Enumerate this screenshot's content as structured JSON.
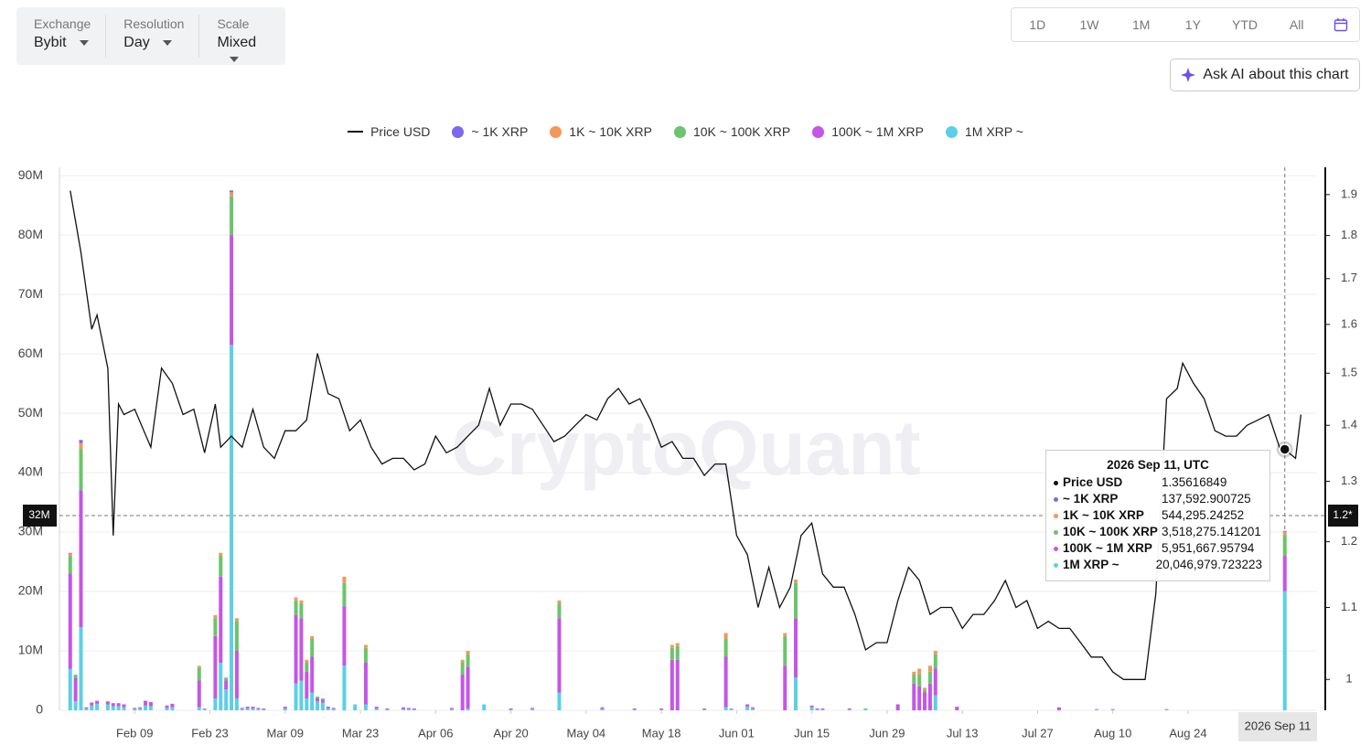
{
  "ui": {
    "controls": [
      {
        "label": "Exchange",
        "value": "Bybit"
      },
      {
        "label": "Resolution",
        "value": "Day"
      },
      {
        "label": "Scale",
        "value": "Mixed"
      }
    ],
    "ranges": [
      "1D",
      "1W",
      "1M",
      "1Y",
      "YTD",
      "All"
    ],
    "ask_ai": "Ask AI about this chart",
    "watermark": "CryptoQuant"
  },
  "chart_data": {
    "type": "bar",
    "stacked": true,
    "grid": true,
    "xlim": [
      "2026-01-26",
      "2026-09-17"
    ],
    "xticks": [
      {
        "value": "2026-02-09",
        "label": "Feb 09"
      },
      {
        "value": "2026-02-23",
        "label": "Feb 23"
      },
      {
        "value": "2026-03-09",
        "label": "Mar 09"
      },
      {
        "value": "2026-03-23",
        "label": "Mar 23"
      },
      {
        "value": "2026-04-06",
        "label": "Apr 06"
      },
      {
        "value": "2026-04-20",
        "label": "Apr 20"
      },
      {
        "value": "2026-05-04",
        "label": "May 04"
      },
      {
        "value": "2026-05-18",
        "label": "May 18"
      },
      {
        "value": "2026-06-01",
        "label": "Jun 01"
      },
      {
        "value": "2026-06-15",
        "label": "Jun 15"
      },
      {
        "value": "2026-06-29",
        "label": "Jun 29"
      },
      {
        "value": "2026-07-13",
        "label": "Jul 13"
      },
      {
        "value": "2026-07-27",
        "label": "Jul 27"
      },
      {
        "value": "2026-08-10",
        "label": "Aug 10"
      },
      {
        "value": "2026-08-24",
        "label": "Aug 24"
      }
    ],
    "ylim": [
      0,
      91400000
    ],
    "yticks": [
      0,
      {
        "value": 10000000,
        "label": "10M"
      },
      {
        "value": 20000000,
        "label": "20M"
      },
      {
        "value": 30000000,
        "label": "30M"
      },
      {
        "value": 40000000,
        "label": "40M"
      },
      {
        "value": 50000000,
        "label": "50M"
      },
      {
        "value": 60000000,
        "label": "60M"
      },
      {
        "value": 70000000,
        "label": "70M"
      },
      {
        "value": 80000000,
        "label": "80M"
      },
      {
        "value": 90000000,
        "label": "90M"
      }
    ],
    "y2scale": "log",
    "y2lim": [
      0.96,
      1.97
    ],
    "y2ticks": [
      1,
      1.1,
      1.2,
      1.3,
      1.4,
      1.5,
      1.6,
      1.7,
      1.8,
      1.9
    ],
    "x": [
      "2026-01-28",
      "2026-01-29",
      "2026-01-30",
      "2026-01-31",
      "2026-02-01",
      "2026-02-02",
      "2026-02-04",
      "2026-02-05",
      "2026-02-06",
      "2026-02-07",
      "2026-02-09",
      "2026-02-10",
      "2026-02-11",
      "2026-02-12",
      "2026-02-15",
      "2026-02-16",
      "2026-02-21",
      "2026-02-22",
      "2026-02-24",
      "2026-02-25",
      "2026-02-26",
      "2026-02-27",
      "2026-02-28",
      "2026-03-01",
      "2026-03-02",
      "2026-03-03",
      "2026-03-04",
      "2026-03-05",
      "2026-03-09",
      "2026-03-11",
      "2026-03-12",
      "2026-03-13",
      "2026-03-14",
      "2026-03-15",
      "2026-03-16",
      "2026-03-17",
      "2026-03-18",
      "2026-03-20",
      "2026-03-22",
      "2026-03-24",
      "2026-03-26",
      "2026-03-28",
      "2026-03-31",
      "2026-04-01",
      "2026-04-02",
      "2026-04-09",
      "2026-04-11",
      "2026-04-12",
      "2026-04-15",
      "2026-04-20",
      "2026-04-24",
      "2026-04-29",
      "2026-05-07",
      "2026-05-13",
      "2026-05-18",
      "2026-05-20",
      "2026-05-21",
      "2026-05-26",
      "2026-05-30",
      "2026-05-31",
      "2026-06-03",
      "2026-06-04",
      "2026-06-10",
      "2026-06-12",
      "2026-06-15",
      "2026-06-16",
      "2026-06-17",
      "2026-06-22",
      "2026-06-25",
      "2026-07-01",
      "2026-07-04",
      "2026-07-05",
      "2026-07-06",
      "2026-07-07",
      "2026-07-08",
      "2026-07-12",
      "2026-07-31",
      "2026-08-07",
      "2026-08-10",
      "2026-08-20",
      "2026-09-11"
    ],
    "series": [
      {
        "name": "Price USD",
        "type": "line",
        "axis": "y2",
        "color": "#111111",
        "x": [
          "2026-01-28",
          "2026-01-30",
          "2026-02-01",
          "2026-02-02",
          "2026-02-04",
          "2026-02-05",
          "2026-02-06",
          "2026-02-07",
          "2026-02-09",
          "2026-02-12",
          "2026-02-14",
          "2026-02-16",
          "2026-02-18",
          "2026-02-20",
          "2026-02-22",
          "2026-02-24",
          "2026-02-25",
          "2026-02-27",
          "2026-03-01",
          "2026-03-03",
          "2026-03-05",
          "2026-03-07",
          "2026-03-09",
          "2026-03-11",
          "2026-03-13",
          "2026-03-15",
          "2026-03-17",
          "2026-03-19",
          "2026-03-21",
          "2026-03-23",
          "2026-03-25",
          "2026-03-27",
          "2026-03-29",
          "2026-03-31",
          "2026-04-02",
          "2026-04-04",
          "2026-04-06",
          "2026-04-08",
          "2026-04-10",
          "2026-04-12",
          "2026-04-14",
          "2026-04-16",
          "2026-04-18",
          "2026-04-20",
          "2026-04-22",
          "2026-04-24",
          "2026-04-26",
          "2026-04-28",
          "2026-04-30",
          "2026-05-02",
          "2026-05-04",
          "2026-05-06",
          "2026-05-08",
          "2026-05-10",
          "2026-05-12",
          "2026-05-14",
          "2026-05-16",
          "2026-05-18",
          "2026-05-20",
          "2026-05-22",
          "2026-05-24",
          "2026-05-26",
          "2026-05-28",
          "2026-05-30",
          "2026-06-01",
          "2026-06-03",
          "2026-06-05",
          "2026-06-07",
          "2026-06-09",
          "2026-06-11",
          "2026-06-13",
          "2026-06-15",
          "2026-06-17",
          "2026-06-19",
          "2026-06-21",
          "2026-06-23",
          "2026-06-25",
          "2026-06-27",
          "2026-06-29",
          "2026-07-01",
          "2026-07-03",
          "2026-07-05",
          "2026-07-07",
          "2026-07-09",
          "2026-07-11",
          "2026-07-13",
          "2026-07-15",
          "2026-07-17",
          "2026-07-19",
          "2026-07-21",
          "2026-07-23",
          "2026-07-25",
          "2026-07-27",
          "2026-07-29",
          "2026-07-31",
          "2026-08-02",
          "2026-08-04",
          "2026-08-06",
          "2026-08-08",
          "2026-08-10",
          "2026-08-12",
          "2026-08-14",
          "2026-08-16",
          "2026-08-18",
          "2026-08-20",
          "2026-08-22",
          "2026-08-23",
          "2026-08-25",
          "2026-08-27",
          "2026-08-29",
          "2026-08-31",
          "2026-09-02",
          "2026-09-04",
          "2026-09-06",
          "2026-09-08",
          "2026-09-10",
          "2026-09-11",
          "2026-09-13",
          "2026-09-14"
        ],
        "values": [
          1.91,
          1.76,
          1.59,
          1.62,
          1.51,
          1.21,
          1.44,
          1.42,
          1.43,
          1.36,
          1.51,
          1.48,
          1.42,
          1.43,
          1.35,
          1.44,
          1.36,
          1.38,
          1.36,
          1.43,
          1.36,
          1.34,
          1.39,
          1.39,
          1.41,
          1.54,
          1.46,
          1.45,
          1.39,
          1.41,
          1.36,
          1.33,
          1.34,
          1.34,
          1.32,
          1.33,
          1.38,
          1.35,
          1.36,
          1.38,
          1.4,
          1.47,
          1.4,
          1.44,
          1.44,
          1.43,
          1.4,
          1.37,
          1.38,
          1.4,
          1.42,
          1.41,
          1.45,
          1.47,
          1.44,
          1.45,
          1.41,
          1.36,
          1.37,
          1.34,
          1.34,
          1.31,
          1.33,
          1.33,
          1.21,
          1.18,
          1.1,
          1.16,
          1.1,
          1.13,
          1.21,
          1.23,
          1.15,
          1.13,
          1.13,
          1.09,
          1.04,
          1.05,
          1.05,
          1.11,
          1.16,
          1.14,
          1.09,
          1.1,
          1.1,
          1.07,
          1.09,
          1.09,
          1.11,
          1.14,
          1.1,
          1.11,
          1.07,
          1.08,
          1.07,
          1.07,
          1.05,
          1.03,
          1.03,
          1.01,
          1,
          1,
          1,
          1.12,
          1.45,
          1.47,
          1.52,
          1.48,
          1.45,
          1.39,
          1.38,
          1.38,
          1.4,
          1.41,
          1.42,
          1.36,
          1.35616849,
          1.34,
          1.42
        ]
      },
      {
        "name": "~ 1K XRP",
        "color": "#7b68ee",
        "values": [
          100000,
          0,
          500000,
          0,
          0,
          0,
          0,
          0,
          0,
          0,
          0,
          0,
          0,
          0,
          0,
          0,
          0,
          0,
          0,
          0,
          0,
          300000,
          0,
          0,
          0,
          0,
          0,
          0,
          0,
          0,
          0,
          0,
          0,
          0,
          0,
          0,
          0,
          0,
          0,
          0,
          0,
          0,
          0,
          0,
          0,
          0,
          0,
          0,
          0,
          0,
          0,
          0,
          0,
          0,
          0,
          0,
          0,
          0,
          0,
          0,
          0,
          0,
          0,
          0,
          0,
          0,
          0,
          0,
          0,
          0,
          0,
          0,
          0,
          0,
          0,
          0,
          0,
          0,
          0,
          0,
          137592.900725
        ]
      },
      {
        "name": "1K ~ 10K XRP",
        "color": "#f4975a",
        "values": [
          400000,
          0,
          1000000,
          0,
          0,
          0,
          0,
          0,
          0,
          0,
          0,
          0,
          0,
          0,
          0,
          0,
          300000,
          0,
          500000,
          500000,
          0,
          700000,
          500000,
          0,
          0,
          0,
          0,
          0,
          0,
          500000,
          500000,
          500000,
          500000,
          0,
          0,
          0,
          0,
          1000000,
          0,
          500000,
          0,
          0,
          0,
          0,
          0,
          0,
          500000,
          500000,
          0,
          0,
          0,
          500000,
          0,
          0,
          0,
          500000,
          500000,
          0,
          1000000,
          0,
          0,
          0,
          500000,
          500000,
          0,
          0,
          0,
          0,
          0,
          0,
          500000,
          1000000,
          300000,
          1000000,
          500000,
          0,
          0,
          0,
          0,
          0,
          544295.24252
        ]
      },
      {
        "name": "10K ~ 100K XRP",
        "color": "#6cc46c",
        "values": [
          3000000,
          500000,
          7000000,
          0,
          0,
          0,
          0,
          0,
          0,
          0,
          0,
          0,
          0,
          0,
          0,
          0,
          2200000,
          0,
          3000000,
          3500000,
          500000,
          6500000,
          5000000,
          0,
          0,
          0,
          0,
          0,
          0,
          2500000,
          2500000,
          1500000,
          3000000,
          300000,
          200000,
          0,
          0,
          4000000,
          0,
          2500000,
          0,
          0,
          0,
          0,
          0,
          0,
          2000000,
          2200000,
          0,
          0,
          0,
          2500000,
          0,
          0,
          0,
          2000000,
          2300000,
          0,
          3000000,
          0,
          0,
          0,
          5000000,
          6000000,
          0,
          0,
          0,
          0,
          200000,
          0,
          1500000,
          2000000,
          500000,
          2000000,
          2500000,
          0,
          0,
          0,
          0,
          0,
          3518275.141201
        ]
      },
      {
        "name": "100K ~ 1M XRP",
        "color": "#c456e8",
        "values": [
          16000000,
          4000000,
          23000000,
          200000,
          500000,
          500000,
          500000,
          500000,
          500000,
          500000,
          200000,
          200000,
          800000,
          700000,
          400000,
          600000,
          4500000,
          100000,
          10500000,
          14500000,
          1500000,
          18500000,
          8000000,
          200000,
          300000,
          300000,
          200000,
          200000,
          300000,
          11500000,
          10500000,
          4500000,
          6000000,
          500000,
          500000,
          300000,
          200000,
          10000000,
          0,
          7000000,
          300000,
          200000,
          300000,
          200000,
          200000,
          200000,
          6000000,
          7000000,
          0,
          200000,
          200000,
          12500000,
          300000,
          200000,
          200000,
          8500000,
          8500000,
          200000,
          8500000,
          100000,
          400000,
          200000,
          7500000,
          10000000,
          300000,
          200000,
          200000,
          200000,
          0,
          1000000,
          4500000,
          4000000,
          3000000,
          4500000,
          4500000,
          600000,
          500000,
          100000,
          100000,
          100000,
          5951667.95794
        ]
      },
      {
        "name": "1M XRP ~",
        "color": "#5ccfe6",
        "values": [
          7000000,
          1500000,
          14000000,
          300000,
          800000,
          1100000,
          1000000,
          700000,
          700000,
          500000,
          200000,
          300000,
          800000,
          700000,
          400000,
          500000,
          500000,
          200000,
          2000000,
          8000000,
          3500000,
          61500000,
          2000000,
          200000,
          300000,
          300000,
          200000,
          100000,
          300000,
          4500000,
          5000000,
          2000000,
          3000000,
          1500000,
          1300000,
          300000,
          200000,
          7500000,
          1000000,
          1000000,
          300000,
          100000,
          200000,
          200000,
          100000,
          200000,
          0,
          300000,
          1000000,
          100000,
          200000,
          3000000,
          200000,
          100000,
          100000,
          0,
          0,
          100000,
          500000,
          200000,
          600000,
          300000,
          0,
          5500000,
          500000,
          100000,
          100000,
          100000,
          100000,
          0,
          0,
          0,
          0,
          0,
          2500000,
          0,
          0,
          100000,
          100000,
          100000,
          20046979.723223
        ]
      }
    ],
    "tooltip": {
      "title": "2026 Sep 11, UTC",
      "values": [
        "1.35616849",
        "137,592.900725",
        "544,295.24252",
        "3,518,275.141201",
        "5,951,667.95794",
        "20,046,979.723223"
      ]
    },
    "crosshair": {
      "y_label": "32M",
      "y2_label": "1.2*",
      "x_label": "2026 Sep 11"
    }
  }
}
